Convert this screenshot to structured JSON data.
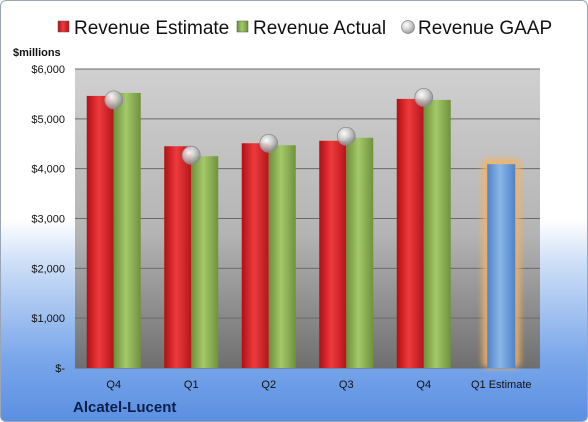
{
  "chart_data": {
    "type": "bar",
    "company": "Alcatel-Lucent",
    "unit_label": "$millions",
    "categories": [
      "Q4",
      "Q1",
      "Q2",
      "Q3",
      "Q4",
      "Q1 Estimate"
    ],
    "series": [
      {
        "name": "Revenue Estimate",
        "type": "bar",
        "color": "#e0262a",
        "values": [
          5460,
          4450,
          4510,
          4560,
          5400,
          null
        ]
      },
      {
        "name": "Revenue Actual",
        "type": "bar",
        "color": "#8fb556",
        "values": [
          5520,
          4250,
          4470,
          4620,
          5380,
          null
        ]
      },
      {
        "name": "Revenue GAAP",
        "type": "scatter",
        "color": "#c0c0c0",
        "values": [
          5380,
          4270,
          4510,
          4650,
          5430,
          null
        ]
      },
      {
        "name": "",
        "type": "bar",
        "color": "#6d9fd9",
        "highlight": "#f5b25e",
        "values": [
          null,
          null,
          null,
          null,
          null,
          4090
        ]
      }
    ],
    "ylim": [
      0,
      6000
    ],
    "yticks": [
      0,
      1000,
      2000,
      3000,
      4000,
      5000,
      6000
    ],
    "ytick_labels": [
      "$-",
      "$1,000",
      "$2,000",
      "$3,000",
      "$4,000",
      "$5,000",
      "$6,000"
    ],
    "grid": true,
    "legend": "top"
  }
}
